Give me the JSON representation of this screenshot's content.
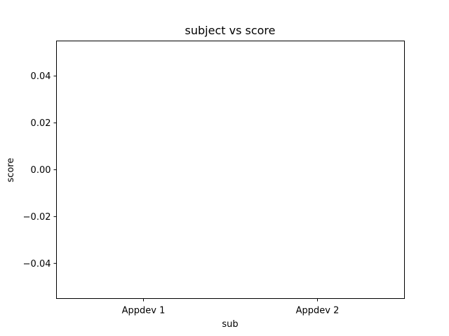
{
  "chart_data": {
    "type": "bar",
    "title": "subject vs score",
    "xlabel": "sub",
    "ylabel": "score",
    "categories": [
      "Appdev 1",
      "Appdev 2"
    ],
    "values": [
      0,
      0
    ],
    "ylim": [
      -0.055,
      0.055
    ],
    "yticks": [
      0.04,
      0.02,
      0.0,
      -0.02,
      -0.04
    ],
    "ytick_labels": [
      "0.04",
      "0.02",
      "0.00",
      "−0.02",
      "−0.04"
    ],
    "grid": false,
    "colors": {
      "axis": "#000000",
      "bar": "#1f77b4"
    }
  }
}
